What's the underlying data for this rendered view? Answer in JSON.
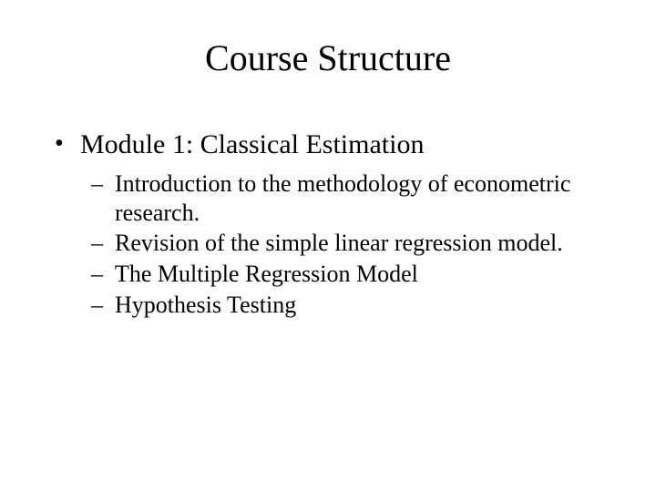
{
  "title": "Course Structure",
  "module": {
    "heading": "Module 1: Classical Estimation",
    "items": [
      "Introduction to the methodology of econometric research.",
      "Revision of the simple linear regression model.",
      "The Multiple Regression Model",
      "Hypothesis Testing"
    ]
  }
}
